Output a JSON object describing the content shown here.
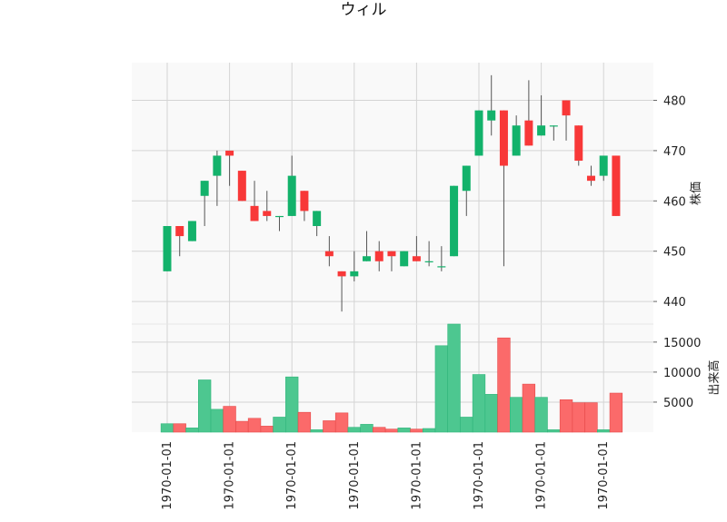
{
  "chart_data": {
    "type": "candlestick",
    "title": "ウィル",
    "ylabel_price": "株価",
    "ylabel_volume": "出来高",
    "colors": {
      "up": "#13b26b",
      "down": "#f83838",
      "up_volume": "#4dc790",
      "down_volume": "#fb6a6a",
      "wick": "#555555",
      "panel_bg": "#f9f9f9",
      "grid": "#d4d4d4"
    },
    "price_ylim": [
      435.5,
      487.5
    ],
    "price_ticks": [
      440,
      450,
      460,
      470,
      480
    ],
    "volume_ylim": [
      0,
      18000
    ],
    "volume_ticks": [
      5000,
      10000,
      15000
    ],
    "x_tick_labels": [
      "1970-01-01",
      "1970-01-01",
      "1970-01-01",
      "1970-01-01",
      "1970-01-01",
      "1970-01-01",
      "1970-01-01",
      "1970-01-01"
    ],
    "x_tick_index": [
      0,
      5,
      10,
      15,
      20,
      25,
      30,
      35
    ],
    "grid": true,
    "candles": [
      {
        "o": 446,
        "h": 455,
        "l": 446,
        "c": 455,
        "v": 1400
      },
      {
        "o": 455,
        "h": 455,
        "l": 449,
        "c": 453,
        "v": 1400
      },
      {
        "o": 452,
        "h": 456,
        "l": 452,
        "c": 456,
        "v": 700
      },
      {
        "o": 461,
        "h": 464,
        "l": 455,
        "c": 464,
        "v": 8700
      },
      {
        "o": 465,
        "h": 470,
        "l": 459,
        "c": 469,
        "v": 3800
      },
      {
        "o": 470,
        "h": 470,
        "l": 463,
        "c": 469,
        "v": 4300
      },
      {
        "o": 466,
        "h": 466,
        "l": 460,
        "c": 460,
        "v": 1800
      },
      {
        "o": 459,
        "h": 464,
        "l": 456,
        "c": 456,
        "v": 2300
      },
      {
        "o": 458,
        "h": 462,
        "l": 456,
        "c": 457,
        "v": 1000
      },
      {
        "o": 457,
        "h": 457,
        "l": 454,
        "c": 457,
        "v": 2500
      },
      {
        "o": 457,
        "h": 469,
        "l": 457,
        "c": 465,
        "v": 9200
      },
      {
        "o": 462,
        "h": 462,
        "l": 456,
        "c": 458,
        "v": 3300
      },
      {
        "o": 455,
        "h": 458,
        "l": 453,
        "c": 458,
        "v": 400
      },
      {
        "o": 450,
        "h": 453,
        "l": 447,
        "c": 449,
        "v": 1900
      },
      {
        "o": 446,
        "h": 446,
        "l": 438,
        "c": 445,
        "v": 3200
      },
      {
        "o": 445,
        "h": 450,
        "l": 444,
        "c": 446,
        "v": 800
      },
      {
        "o": 448,
        "h": 454,
        "l": 448,
        "c": 449,
        "v": 1300
      },
      {
        "o": 450,
        "h": 452,
        "l": 446,
        "c": 448,
        "v": 800
      },
      {
        "o": 450,
        "h": 450,
        "l": 446,
        "c": 449,
        "v": 500
      },
      {
        "o": 447,
        "h": 450,
        "l": 447,
        "c": 450,
        "v": 700
      },
      {
        "o": 449,
        "h": 453,
        "l": 448,
        "c": 448,
        "v": 500
      },
      {
        "o": 448,
        "h": 452,
        "l": 447,
        "c": 448,
        "v": 600
      },
      {
        "o": 447,
        "h": 451,
        "l": 446,
        "c": 447,
        "v": 14400
      },
      {
        "o": 449,
        "h": 463,
        "l": 449,
        "c": 463,
        "v": 18000
      },
      {
        "o": 462,
        "h": 467,
        "l": 457,
        "c": 467,
        "v": 2500
      },
      {
        "o": 469,
        "h": 478,
        "l": 469,
        "c": 478,
        "v": 9600
      },
      {
        "o": 476,
        "h": 485,
        "l": 473,
        "c": 478,
        "v": 6300
      },
      {
        "o": 478,
        "h": 478,
        "l": 447,
        "c": 467,
        "v": 15700
      },
      {
        "o": 469,
        "h": 477,
        "l": 469,
        "c": 475,
        "v": 5800
      },
      {
        "o": 476,
        "h": 484,
        "l": 471,
        "c": 471,
        "v": 8000
      },
      {
        "o": 473,
        "h": 481,
        "l": 473,
        "c": 475,
        "v": 5800
      },
      {
        "o": 475,
        "h": 475,
        "l": 472,
        "c": 475,
        "v": 400
      },
      {
        "o": 480,
        "h": 480,
        "l": 472,
        "c": 477,
        "v": 5400
      },
      {
        "o": 475,
        "h": 475,
        "l": 467,
        "c": 468,
        "v": 4900
      },
      {
        "o": 465,
        "h": 467,
        "l": 463,
        "c": 464,
        "v": 4900
      },
      {
        "o": 465,
        "h": 469,
        "l": 464,
        "c": 469,
        "v": 400
      },
      {
        "o": 469,
        "h": 469,
        "l": 457,
        "c": 457,
        "v": 6500
      }
    ]
  }
}
